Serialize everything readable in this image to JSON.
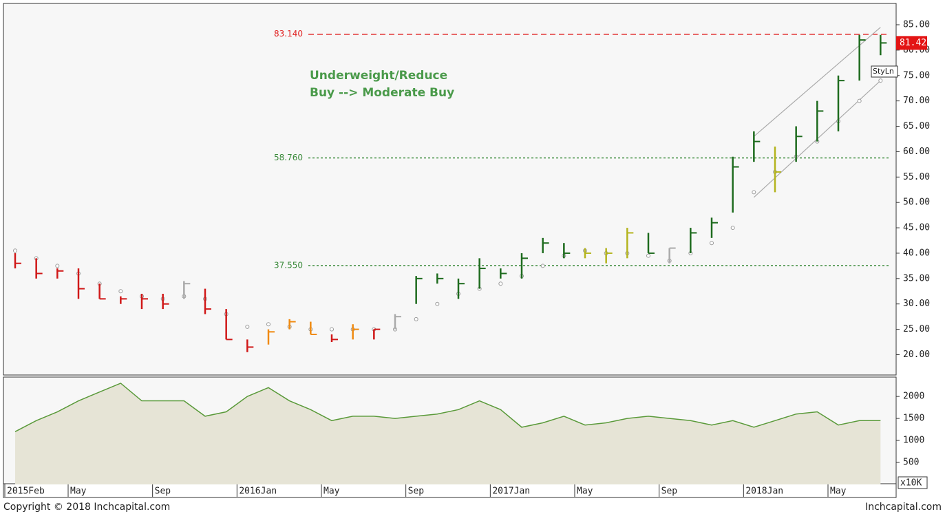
{
  "chart_data": {
    "type": "ohlc",
    "annotation": [
      "Underweight/Reduce",
      "Buy --> Moderate Buy"
    ],
    "x": [
      "2015-02",
      "2015-03",
      "2015-04",
      "2015-05",
      "2015-06",
      "2015-07",
      "2015-08",
      "2015-09",
      "2015-10",
      "2015-11",
      "2015-12",
      "2016-01",
      "2016-02",
      "2016-03",
      "2016-04",
      "2016-05",
      "2016-06",
      "2016-07",
      "2016-08",
      "2016-09",
      "2016-10",
      "2016-11",
      "2016-12",
      "2017-01",
      "2017-02",
      "2017-03",
      "2017-04",
      "2017-05",
      "2017-06",
      "2017-07",
      "2017-08",
      "2017-09",
      "2017-10",
      "2017-11",
      "2017-12",
      "2018-01",
      "2018-02",
      "2018-03",
      "2018-04",
      "2018-05",
      "2018-06",
      "2018-07"
    ],
    "xlim": [
      "2015-02",
      "2018-08"
    ],
    "xticks": [
      {
        "value": "2015-02",
        "label": "2015Feb"
      },
      {
        "value": "2015-05",
        "label": "May"
      },
      {
        "value": "2015-09",
        "label": "Sep"
      },
      {
        "value": "2016-01",
        "label": "2016Jan"
      },
      {
        "value": "2016-05",
        "label": "May"
      },
      {
        "value": "2016-09",
        "label": "Sep"
      },
      {
        "value": "2017-01",
        "label": "2017Jan"
      },
      {
        "value": "2017-05",
        "label": "May"
      },
      {
        "value": "2017-09",
        "label": "Sep"
      },
      {
        "value": "2018-01",
        "label": "2018Jan"
      },
      {
        "value": "2018-05",
        "label": "May"
      }
    ],
    "high": [
      40,
      39,
      37,
      37,
      34,
      31.5,
      32,
      32,
      34.5,
      33,
      29,
      23,
      25,
      27,
      26.5,
      24,
      26,
      25,
      28,
      35.5,
      36,
      35,
      39,
      37,
      40,
      43,
      42,
      41,
      41,
      45,
      44,
      41,
      45,
      47,
      59,
      64,
      61,
      65,
      70,
      75,
      83,
      83
    ],
    "low": [
      37,
      35,
      35,
      31,
      31,
      30,
      29,
      29,
      31,
      28,
      23,
      20.5,
      22,
      25,
      24,
      22.5,
      23,
      23,
      25,
      30,
      34,
      31,
      33,
      35,
      35,
      40,
      39,
      39,
      38,
      39,
      40,
      38,
      40,
      43,
      48,
      58,
      52,
      58,
      62,
      64,
      74,
      79
    ],
    "close": [
      38,
      36,
      36.5,
      33,
      31,
      31,
      31,
      30,
      34,
      29,
      23,
      21.5,
      24.5,
      26.5,
      24,
      23,
      25,
      25,
      27.5,
      35,
      35,
      34,
      37,
      36,
      39,
      42,
      40,
      40,
      40,
      44,
      40,
      41,
      44,
      46,
      57,
      62,
      56,
      63,
      68,
      74,
      82,
      81.42
    ],
    "colors": [
      "#d01818",
      "#d01818",
      "#d01818",
      "#d01818",
      "#d01818",
      "#d01818",
      "#d01818",
      "#d01818",
      "#aaaaaa",
      "#d01818",
      "#d01818",
      "#d01818",
      "#f08a10",
      "#f08a10",
      "#f08a10",
      "#d01818",
      "#f08a10",
      "#d01818",
      "#aaaaaa",
      "#1e6b1e",
      "#1e6b1e",
      "#1e6b1e",
      "#1e6b1e",
      "#1e6b1e",
      "#1e6b1e",
      "#1e6b1e",
      "#1e6b1e",
      "#b4b41e",
      "#b4b41e",
      "#b4b41e",
      "#1e6b1e",
      "#aaaaaa",
      "#1e6b1e",
      "#1e6b1e",
      "#1e6b1e",
      "#1e6b1e",
      "#b4b41e",
      "#1e6b1e",
      "#1e6b1e",
      "#1e6b1e",
      "#1e6b1e",
      "#1e6b1e"
    ],
    "sar": [
      40.5,
      39,
      37.5,
      36,
      34,
      32.5,
      31.5,
      31,
      31.5,
      31,
      28,
      25.5,
      26,
      25.5,
      25,
      25,
      25,
      25,
      25,
      27,
      30,
      32,
      33,
      34,
      35.5,
      37.5,
      39.5,
      40.5,
      40,
      40,
      39.5,
      38.5,
      40,
      42,
      45,
      52,
      56,
      59,
      62,
      66,
      70,
      74
    ],
    "last_price": {
      "value": 81.42,
      "label": "81.42"
    },
    "style_label": "StyLn",
    "levels": [
      {
        "value": 83.14,
        "label": "83.140",
        "color": "#e02020",
        "dash": "8,5"
      },
      {
        "value": 58.76,
        "label": "58.760",
        "color": "#3a8a3a",
        "dash": "3,3"
      },
      {
        "value": 37.55,
        "label": "37.550",
        "color": "#3a8a3a",
        "dash": "3,3"
      }
    ],
    "channel": [
      {
        "x": [
          "2018-01",
          "2018-07"
        ],
        "y": [
          63,
          84.5
        ]
      },
      {
        "x": [
          "2018-01",
          "2018-07"
        ],
        "y": [
          51,
          74
        ]
      }
    ],
    "ylim": [
      16,
      89.2
    ],
    "yticks": [
      {
        "value": 20,
        "label": "20.00"
      },
      {
        "value": 25,
        "label": "25.00"
      },
      {
        "value": 30,
        "label": "30.00"
      },
      {
        "value": 35,
        "label": "35.00"
      },
      {
        "value": 40,
        "label": "40.00"
      },
      {
        "value": 45,
        "label": "45.00"
      },
      {
        "value": 50,
        "label": "50.00"
      },
      {
        "value": 55,
        "label": "55.00"
      },
      {
        "value": 60,
        "label": "60.00"
      },
      {
        "value": 65,
        "label": "65.00"
      },
      {
        "value": 70,
        "label": "70.00"
      },
      {
        "value": 75,
        "label": "75.00"
      },
      {
        "value": 80,
        "label": "80.00"
      },
      {
        "value": 85,
        "label": "85.00"
      }
    ],
    "volume": [
      1200,
      1450,
      1650,
      1900,
      2100,
      2300,
      1900,
      1900,
      1900,
      1550,
      1650,
      2000,
      2200,
      1900,
      1700,
      1450,
      1550,
      1550,
      1500,
      1550,
      1600,
      1700,
      1900,
      1700,
      1300,
      1400,
      1550,
      1350,
      1400,
      1500,
      1550,
      1500,
      1450,
      1350,
      1450,
      1300,
      1450,
      1600,
      1650,
      1350,
      1450,
      1450
    ],
    "volume_unit": "x10K",
    "y2lim": [
      0,
      2440
    ],
    "y2ticks": [
      500,
      1000,
      1500,
      2000
    ],
    "footer_left": "Copyright © 2018 Inchcapital.com",
    "footer_right": "Inchcapital.com"
  }
}
